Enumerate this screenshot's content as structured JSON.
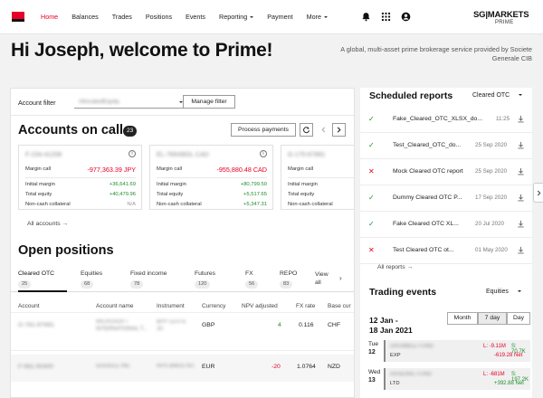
{
  "nav": {
    "items": [
      "Home",
      "Balances",
      "Trades",
      "Positions",
      "Events",
      "Reporting",
      "Payment",
      "More"
    ],
    "brand": "SG|MARKETS",
    "brand_sub": "PRIME"
  },
  "header": {
    "welcome": "Hi Joseph, welcome to Prime!",
    "tagline": "A global, multi-asset prime brokerage service provided by Societe Generale CIB"
  },
  "filter": {
    "label": "Account filter",
    "value": "AllocatedEquity",
    "manage_label": "Manage filter"
  },
  "accounts": {
    "title": "Accounts on call",
    "count": "23",
    "process_label": "Process payments",
    "all_label": "All accounts",
    "labels": {
      "margin_call": "Margin call",
      "initial_margin": "Initial margin",
      "total_equity": "Total equity",
      "non_cash": "Non-cash collateral"
    },
    "cards": [
      {
        "name": "F-234-41208",
        "margin_call": "-977,363.39 JPY",
        "initial_margin": "+36,641.69",
        "total_equity": "+40,479.96",
        "non_cash": "N/A"
      },
      {
        "name": "EL-769XBOL CAD",
        "margin_call": "-955,880.48 CAD",
        "initial_margin": "+80,799.50",
        "total_equity": "+5,517.65",
        "non_cash": "+5,347.31"
      },
      {
        "name": "G-175-67891",
        "margin_call": "",
        "initial_margin": "",
        "total_equity": "",
        "non_cash": ""
      }
    ]
  },
  "positions": {
    "title": "Open positions",
    "tabs": [
      {
        "label": "Cleared OTC",
        "count": "25"
      },
      {
        "label": "Equities",
        "count": "68"
      },
      {
        "label": "Fixed income",
        "count": "78"
      },
      {
        "label": "Futures",
        "count": "120"
      },
      {
        "label": "FX",
        "count": "56"
      },
      {
        "label": "REPO",
        "count": "83"
      },
      {
        "label": "View all",
        "count": ""
      }
    ],
    "columns": [
      "Account",
      "Account name",
      "Instrument",
      "Currency",
      "NPV adjusted",
      "FX rate",
      "Base cur"
    ],
    "rows": [
      {
        "account": "G-781-67891",
        "name": "MICROSOFT INTERNATIONAL T...",
        "instrument": "BHY LESTE JU",
        "currency": "GBP",
        "npv": "4",
        "fx": "0.116",
        "base": "CHF"
      },
      {
        "account": "F-981-50400",
        "name": "GOOGLE INC",
        "instrument": "RPS BMDS INT",
        "currency": "EUR",
        "npv": "-20",
        "fx": "1.0764",
        "base": "NZD"
      }
    ]
  },
  "scheduled": {
    "title": "Scheduled reports",
    "filter": "Cleared OTC",
    "all_label": "All reports",
    "rows": [
      {
        "status": "ok",
        "name": "Fake_Cleared_OTC_XLSX_do...",
        "date": "11:25"
      },
      {
        "status": "ok",
        "name": "Test_Cleared_OTC_do...",
        "date": "25 Sep 2020"
      },
      {
        "status": "fail",
        "name": "Mock Cleared OTC report",
        "date": "25 Sep 2020"
      },
      {
        "status": "ok",
        "name": "Dummy Cleared OTC P...",
        "date": "17 Sep 2020"
      },
      {
        "status": "ok",
        "name": "Fake Cleared OTC XL...",
        "date": "20 Jul 2020"
      },
      {
        "status": "fail",
        "name": "Test Cleared OTC ot...",
        "date": "01 May 2020"
      }
    ]
  },
  "events": {
    "title": "Trading events",
    "filter": "Equities",
    "range_line1": "12 Jan -",
    "range_line2": "18 Jan 2021",
    "views": [
      "Month",
      "7 day",
      "Day"
    ],
    "days": [
      {
        "dow": "Tue",
        "num": "12",
        "name": "GRUMBLE FUND",
        "type": "EXP",
        "l": "L: -9.11M",
        "s": "S: 70.7K",
        "net": "-619.28 Net"
      },
      {
        "dow": "Wed",
        "num": "13",
        "name": "ARSENAL FUND",
        "type": "LTD",
        "l": "L: -681M",
        "s": "S: 197.2K",
        "net": "+392.88 Net"
      }
    ]
  },
  "colors": {
    "accent": "#e60028",
    "positive": "#1f8c2b"
  }
}
